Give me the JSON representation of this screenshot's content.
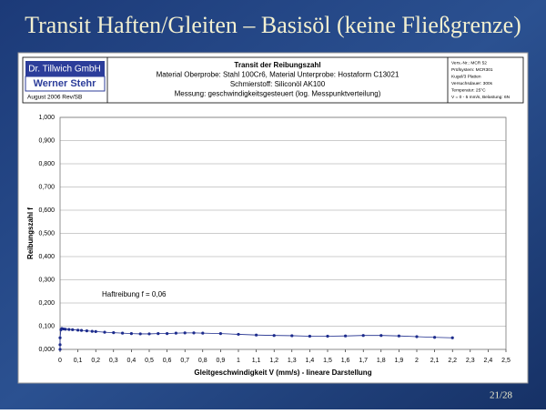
{
  "slide": {
    "title": "Transit Haften/Gleiten – Basisöl (keine Fließgrenze)",
    "number": "21/28"
  },
  "header": {
    "logo_top": "Dr. Tillwich GmbH",
    "logo_bottom": "Werner Stehr",
    "date": "August 2006 Rev/SB",
    "lines": [
      "Transit der Reibungszahl",
      "Material Oberprobe: Stahl 100Cr6, Material Unterprobe: Hostaform C13021",
      "Schmierstoff: Siliconöl AK100",
      "Messung: geschwindigkeitsgesteuert (log. Messpunktverteilung)"
    ],
    "info": [
      "Vers.-Nr.: MCR 52",
      "Prüfsystem: MCR301",
      "Kugel/3 Platten",
      "Versuchsdauer: 300s",
      "Temperatur: 25°C",
      "V = 0 - 5 mm/s, Belastung: 6N"
    ]
  },
  "chart_data": {
    "type": "line",
    "x_label": "Gleitgeschwindigkeit V (mm/s)  - lineare Darstellung",
    "y_label": "Reibungszahl f",
    "annotation": "Haftreibung f = 0,06",
    "grid": true,
    "xlim": [
      0,
      2.5
    ],
    "xticks": [
      0,
      {
        "value": 0.1,
        "label": "0,1"
      },
      {
        "value": 0.2,
        "label": "0,2"
      },
      {
        "value": 0.3,
        "label": "0,3"
      },
      {
        "value": 0.4,
        "label": "0,4"
      },
      {
        "value": 0.5,
        "label": "0,5"
      },
      {
        "value": 0.6,
        "label": "0,6"
      },
      {
        "value": 0.7,
        "label": "0,7"
      },
      {
        "value": 0.8,
        "label": "0,8"
      },
      {
        "value": 0.9,
        "label": "0,9"
      },
      1,
      {
        "value": 1.1,
        "label": "1,1"
      },
      {
        "value": 1.2,
        "label": "1,2"
      },
      {
        "value": 1.3,
        "label": "1,3"
      },
      {
        "value": 1.4,
        "label": "1,4"
      },
      {
        "value": 1.5,
        "label": "1,5"
      },
      {
        "value": 1.6,
        "label": "1,6"
      },
      {
        "value": 1.7,
        "label": "1,7"
      },
      {
        "value": 1.8,
        "label": "1,8"
      },
      {
        "value": 1.9,
        "label": "1,9"
      },
      2,
      {
        "value": 2.1,
        "label": "2,1"
      },
      {
        "value": 2.2,
        "label": "2,2"
      },
      {
        "value": 2.3,
        "label": "2,3"
      },
      {
        "value": 2.4,
        "label": "2,4"
      },
      {
        "value": 2.5,
        "label": "2,5"
      }
    ],
    "ylim": [
      0,
      1
    ],
    "yticks": [
      {
        "value": 0,
        "label": "0,000"
      },
      {
        "value": 0.1,
        "label": "0,100"
      },
      {
        "value": 0.2,
        "label": "0,200"
      },
      {
        "value": 0.3,
        "label": "0,300"
      },
      {
        "value": 0.4,
        "label": "0,400"
      },
      {
        "value": 0.5,
        "label": "0,500"
      },
      {
        "value": 0.6,
        "label": "0,600"
      },
      {
        "value": 0.7,
        "label": "0,700"
      },
      {
        "value": 0.8,
        "label": "0,800"
      },
      {
        "value": 0.9,
        "label": "0,900"
      },
      {
        "value": 1,
        "label": "1,000"
      }
    ],
    "x": [
      0,
      0,
      0,
      0.005,
      0.01,
      0.02,
      0.03,
      0.05,
      0.07,
      0.1,
      0.12,
      0.15,
      0.18,
      0.2,
      0.25,
      0.3,
      0.35,
      0.4,
      0.45,
      0.5,
      0.55,
      0.6,
      0.65,
      0.7,
      0.75,
      0.8,
      0.9,
      1.0,
      1.1,
      1.2,
      1.3,
      1.4,
      1.5,
      1.6,
      1.7,
      1.8,
      1.9,
      2.0,
      2.1,
      2.2
    ],
    "series": [
      {
        "color": "#1c2b8c",
        "values": [
          0.0,
          0.02,
          0.05,
          0.085,
          0.09,
          0.088,
          0.087,
          0.086,
          0.085,
          0.083,
          0.082,
          0.08,
          0.078,
          0.077,
          0.074,
          0.072,
          0.07,
          0.068,
          0.067,
          0.067,
          0.068,
          0.068,
          0.07,
          0.071,
          0.071,
          0.07,
          0.068,
          0.065,
          0.062,
          0.06,
          0.059,
          0.057,
          0.057,
          0.058,
          0.06,
          0.06,
          0.058,
          0.055,
          0.052,
          0.05
        ]
      }
    ]
  }
}
